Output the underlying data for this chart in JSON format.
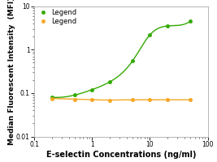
{
  "title": "",
  "xlabel": "E-selectin Concentrations (ng/ml)",
  "ylabel": "Median Fluorescent Intensity  (MFI)",
  "xlim": [
    0.1,
    100
  ],
  "ylim": [
    0.01,
    10
  ],
  "green_x": [
    0.2,
    0.5,
    1.0,
    2.0,
    5.0,
    10.0,
    20.0,
    50.0
  ],
  "green_y": [
    0.08,
    0.09,
    0.12,
    0.18,
    0.55,
    2.2,
    3.5,
    4.5
  ],
  "orange_x": [
    0.2,
    0.5,
    1.0,
    2.0,
    5.0,
    10.0,
    20.0,
    50.0
  ],
  "orange_y": [
    0.075,
    0.072,
    0.07,
    0.069,
    0.07,
    0.07,
    0.07,
    0.07
  ],
  "green_color": "#33aa00",
  "orange_color": "#f5a623",
  "legend_labels": [
    "Legend",
    "Legend"
  ],
  "marker": "o",
  "marker_size": 3,
  "linewidth": 1.0,
  "background_color": "#ffffff",
  "xlabel_fontsize": 7,
  "ylabel_fontsize": 6.5,
  "legend_fontsize": 6,
  "tick_fontsize": 5.5,
  "ytick_labels": [
    "0.01",
    "0.1",
    "1",
    "10"
  ],
  "ytick_vals": [
    0.01,
    0.1,
    1,
    10
  ],
  "xtick_labels": [
    "0.1",
    "1",
    "10",
    "100"
  ],
  "xtick_vals": [
    0.1,
    1,
    10,
    100
  ]
}
